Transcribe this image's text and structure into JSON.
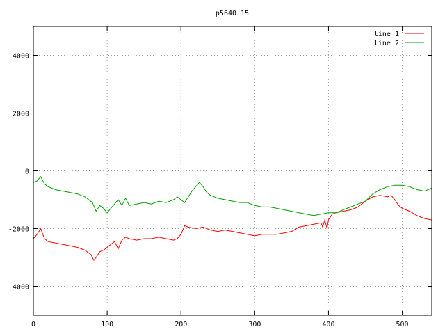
{
  "chart_data": {
    "type": "line",
    "title": "p5640_15",
    "xlabel": "",
    "ylabel": "",
    "xlim": [
      0,
      540
    ],
    "ylim": [
      -5000,
      5000
    ],
    "x_ticks": [
      0,
      100,
      200,
      300,
      400,
      500
    ],
    "y_ticks": [
      -4000,
      -2000,
      0,
      2000,
      4000
    ],
    "grid": true,
    "legend_position": "top-right",
    "series": [
      {
        "name": "line 1",
        "color": "#ff0000",
        "x": [
          0,
          5,
          10,
          15,
          20,
          30,
          40,
          50,
          60,
          70,
          78,
          82,
          85,
          90,
          95,
          100,
          105,
          110,
          115,
          120,
          125,
          130,
          140,
          150,
          160,
          170,
          180,
          190,
          195,
          200,
          205,
          210,
          220,
          230,
          240,
          250,
          260,
          270,
          280,
          290,
          300,
          310,
          320,
          330,
          340,
          350,
          360,
          370,
          380,
          390,
          392,
          395,
          398,
          400,
          405,
          410,
          420,
          430,
          440,
          450,
          460,
          470,
          480,
          485,
          490,
          495,
          500,
          510,
          520,
          530,
          540
        ],
        "y": [
          -2350,
          -2200,
          -2000,
          -2350,
          -2450,
          -2500,
          -2550,
          -2600,
          -2650,
          -2750,
          -2900,
          -3100,
          -3000,
          -2800,
          -2750,
          -2650,
          -2550,
          -2450,
          -2700,
          -2400,
          -2300,
          -2350,
          -2400,
          -2350,
          -2350,
          -2300,
          -2350,
          -2400,
          -2350,
          -2200,
          -1900,
          -1950,
          -2000,
          -1950,
          -2050,
          -2100,
          -2050,
          -2100,
          -2150,
          -2200,
          -2250,
          -2200,
          -2200,
          -2200,
          -2150,
          -2100,
          -1950,
          -1900,
          -1850,
          -1800,
          -1950,
          -1700,
          -2000,
          -1700,
          -1500,
          -1450,
          -1400,
          -1350,
          -1250,
          -1050,
          -900,
          -850,
          -900,
          -850,
          -1000,
          -1200,
          -1300,
          -1400,
          -1550,
          -1650,
          -1700
        ]
      },
      {
        "name": "line 2",
        "color": "#00a000",
        "x": [
          0,
          5,
          10,
          15,
          20,
          30,
          40,
          50,
          60,
          70,
          80,
          85,
          90,
          95,
          100,
          105,
          110,
          115,
          120,
          125,
          130,
          140,
          150,
          160,
          170,
          180,
          190,
          195,
          200,
          205,
          210,
          215,
          220,
          225,
          230,
          235,
          240,
          250,
          260,
          270,
          280,
          290,
          300,
          310,
          320,
          330,
          340,
          350,
          360,
          370,
          380,
          390,
          400,
          410,
          420,
          430,
          440,
          450,
          460,
          470,
          480,
          490,
          500,
          510,
          520,
          530,
          540
        ],
        "y": [
          -400,
          -350,
          -200,
          -450,
          -550,
          -650,
          -700,
          -750,
          -800,
          -900,
          -1100,
          -1400,
          -1200,
          -1300,
          -1450,
          -1300,
          -1150,
          -1000,
          -1200,
          -950,
          -1200,
          -1150,
          -1100,
          -1150,
          -1050,
          -1100,
          -1000,
          -900,
          -1000,
          -1100,
          -900,
          -700,
          -550,
          -400,
          -550,
          -750,
          -850,
          -950,
          -1000,
          -1050,
          -1100,
          -1100,
          -1200,
          -1250,
          -1250,
          -1300,
          -1350,
          -1400,
          -1450,
          -1500,
          -1550,
          -1500,
          -1450,
          -1450,
          -1350,
          -1250,
          -1150,
          -1050,
          -800,
          -650,
          -550,
          -500,
          -500,
          -550,
          -650,
          -700,
          -600
        ]
      }
    ]
  }
}
